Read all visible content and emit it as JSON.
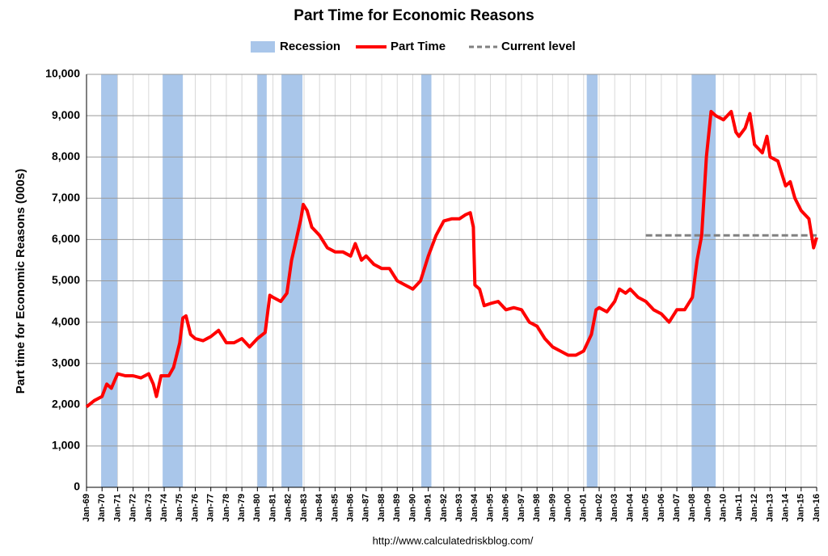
{
  "chart_data": {
    "type": "line",
    "title": "Part Time for Economic Reasons",
    "ylabel": "Part time for Economic Reasons (000s)",
    "footer": "http://www.calculatedriskblog.com/",
    "grid": true,
    "legend": "top",
    "xlim": [
      1969,
      2016
    ],
    "ylim": [
      0,
      10000
    ],
    "yticks": [
      0,
      {
        "value": 1000,
        "label": "1,000"
      },
      {
        "value": 2000,
        "label": "2,000"
      },
      {
        "value": 3000,
        "label": "3,000"
      },
      {
        "value": 4000,
        "label": "4,000"
      },
      {
        "value": 5000,
        "label": "5,000"
      },
      {
        "value": 6000,
        "label": "6,000"
      },
      {
        "value": 7000,
        "label": "7,000"
      },
      {
        "value": 8000,
        "label": "8,000"
      },
      {
        "value": 9000,
        "label": "9,000"
      },
      {
        "value": 10000,
        "label": "10,000"
      }
    ],
    "xticks": [
      {
        "value": 1969,
        "label": "Jan-69"
      },
      {
        "value": 1970,
        "label": "Jan-70"
      },
      {
        "value": 1971,
        "label": "Jan-71"
      },
      {
        "value": 1972,
        "label": "Jan-72"
      },
      {
        "value": 1973,
        "label": "Jan-73"
      },
      {
        "value": 1974,
        "label": "Jan-74"
      },
      {
        "value": 1975,
        "label": "Jan-75"
      },
      {
        "value": 1976,
        "label": "Jan-76"
      },
      {
        "value": 1977,
        "label": "Jan-77"
      },
      {
        "value": 1978,
        "label": "Jan-78"
      },
      {
        "value": 1979,
        "label": "Jan-79"
      },
      {
        "value": 1980,
        "label": "Jan-80"
      },
      {
        "value": 1981,
        "label": "Jan-81"
      },
      {
        "value": 1982,
        "label": "Jan-82"
      },
      {
        "value": 1983,
        "label": "Jan-83"
      },
      {
        "value": 1984,
        "label": "Jan-84"
      },
      {
        "value": 1985,
        "label": "Jan-85"
      },
      {
        "value": 1986,
        "label": "Jan-86"
      },
      {
        "value": 1987,
        "label": "Jan-87"
      },
      {
        "value": 1988,
        "label": "Jan-88"
      },
      {
        "value": 1989,
        "label": "Jan-89"
      },
      {
        "value": 1990,
        "label": "Jan-90"
      },
      {
        "value": 1991,
        "label": "Jan-91"
      },
      {
        "value": 1992,
        "label": "Jan-92"
      },
      {
        "value": 1993,
        "label": "Jan-93"
      },
      {
        "value": 1994,
        "label": "Jan-94"
      },
      {
        "value": 1995,
        "label": "Jan-95"
      },
      {
        "value": 1996,
        "label": "Jan-96"
      },
      {
        "value": 1997,
        "label": "Jan-97"
      },
      {
        "value": 1998,
        "label": "Jan-98"
      },
      {
        "value": 1999,
        "label": "Jan-99"
      },
      {
        "value": 2000,
        "label": "Jan-00"
      },
      {
        "value": 2001,
        "label": "Jan-01"
      },
      {
        "value": 2002,
        "label": "Jan-02"
      },
      {
        "value": 2003,
        "label": "Jan-03"
      },
      {
        "value": 2004,
        "label": "Jan-04"
      },
      {
        "value": 2005,
        "label": "Jan-05"
      },
      {
        "value": 2006,
        "label": "Jan-06"
      },
      {
        "value": 2007,
        "label": "Jan-07"
      },
      {
        "value": 2008,
        "label": "Jan-08"
      },
      {
        "value": 2009,
        "label": "Jan-09"
      },
      {
        "value": 2010,
        "label": "Jan-10"
      },
      {
        "value": 2011,
        "label": "Jan-11"
      },
      {
        "value": 2012,
        "label": "Jan-12"
      },
      {
        "value": 2013,
        "label": "Jan-13"
      },
      {
        "value": 2014,
        "label": "Jan-14"
      },
      {
        "value": 2015,
        "label": "Jan-15"
      },
      {
        "value": 2016,
        "label": "Jan-16"
      }
    ],
    "recession": {
      "name": "Recession",
      "color": "#a9c6ea",
      "periods": [
        [
          1969.94,
          1970.98
        ],
        [
          1973.9,
          1975.2
        ],
        [
          1980.0,
          1980.6
        ],
        [
          1981.55,
          1982.9
        ],
        [
          1990.55,
          1991.2
        ],
        [
          2001.2,
          2001.9
        ],
        [
          2007.95,
          2009.5
        ]
      ]
    },
    "reference": {
      "name": "Current level",
      "color": "#808080",
      "value": 6100,
      "xrange": [
        2005,
        2016
      ]
    },
    "series": [
      {
        "name": "Part Time",
        "color": "#ff0000",
        "x": [
          1969.0,
          1969.5,
          1970.0,
          1970.3,
          1970.6,
          1971.0,
          1971.5,
          1972.0,
          1972.5,
          1973.0,
          1973.3,
          1973.5,
          1973.8,
          1974.3,
          1974.6,
          1975.0,
          1975.2,
          1975.4,
          1975.7,
          1976.0,
          1976.5,
          1977.0,
          1977.5,
          1978.0,
          1978.5,
          1979.0,
          1979.5,
          1980.0,
          1980.5,
          1980.8,
          1981.0,
          1981.5,
          1981.9,
          1982.2,
          1982.5,
          1982.8,
          1982.95,
          1983.2,
          1983.5,
          1984.0,
          1984.5,
          1985.0,
          1985.5,
          1986.0,
          1986.3,
          1986.7,
          1987.0,
          1987.5,
          1988.0,
          1988.5,
          1989.0,
          1989.5,
          1990.0,
          1990.5,
          1991.0,
          1991.5,
          1992.0,
          1992.5,
          1993.0,
          1993.4,
          1993.7,
          1993.9,
          1994.0,
          1994.3,
          1994.6,
          1995.0,
          1995.5,
          1996.0,
          1996.5,
          1997.0,
          1997.5,
          1998.0,
          1998.5,
          1999.0,
          1999.5,
          2000.0,
          2000.5,
          2001.0,
          2001.5,
          2001.8,
          2002.0,
          2002.5,
          2003.0,
          2003.3,
          2003.7,
          2004.0,
          2004.5,
          2005.0,
          2005.5,
          2006.0,
          2006.5,
          2007.0,
          2007.5,
          2008.0,
          2008.3,
          2008.6,
          2008.9,
          2009.2,
          2009.5,
          2010.0,
          2010.5,
          2010.8,
          2011.0,
          2011.4,
          2011.7,
          2012.0,
          2012.5,
          2012.8,
          2013.0,
          2013.5,
          2014.0,
          2014.3,
          2014.6,
          2015.0,
          2015.5,
          2015.8,
          2016.0
        ],
        "values": [
          1950,
          2100,
          2200,
          2500,
          2400,
          2750,
          2700,
          2700,
          2650,
          2750,
          2500,
          2200,
          2700,
          2700,
          2900,
          3500,
          4100,
          4150,
          3700,
          3600,
          3550,
          3650,
          3800,
          3500,
          3500,
          3600,
          3400,
          3600,
          3750,
          4650,
          4600,
          4500,
          4700,
          5500,
          6000,
          6500,
          6850,
          6700,
          6300,
          6100,
          5800,
          5700,
          5700,
          5600,
          5900,
          5500,
          5600,
          5400,
          5300,
          5300,
          5000,
          4900,
          4800,
          5000,
          5600,
          6100,
          6450,
          6500,
          6500,
          6600,
          6650,
          6300,
          4900,
          4800,
          4400,
          4450,
          4500,
          4300,
          4350,
          4300,
          4000,
          3900,
          3600,
          3400,
          3300,
          3200,
          3200,
          3300,
          3700,
          4300,
          4350,
          4250,
          4500,
          4800,
          4700,
          4800,
          4600,
          4500,
          4300,
          4200,
          4000,
          4300,
          4300,
          4600,
          5500,
          6100,
          8000,
          9100,
          9000,
          8900,
          9100,
          8600,
          8500,
          8700,
          9050,
          8300,
          8100,
          8500,
          8000,
          7900,
          7300,
          7400,
          7000,
          6700,
          6500,
          5800,
          6050
        ]
      }
    ]
  }
}
